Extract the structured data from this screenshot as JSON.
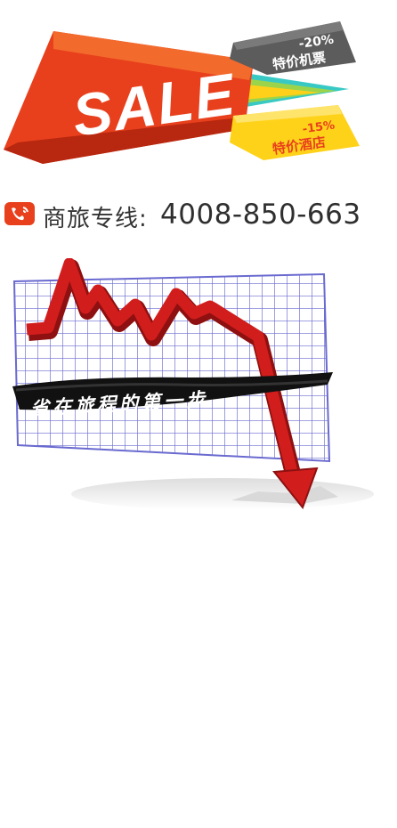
{
  "banner": {
    "sale_text": "SALE",
    "flight_tag": {
      "discount": "-20%",
      "label": "特价机票"
    },
    "hotel_tag": {
      "discount": "-15%",
      "label": "特价酒店"
    }
  },
  "hotline": {
    "icon": "phone-icon",
    "label": "商旅专线:",
    "number": "4008-850-663"
  },
  "illustration": {
    "icon": "falling-price-chart-icon",
    "slogan": "省在旅程的第一步"
  },
  "colors": {
    "sale_red": "#e8401c",
    "flight_tag_gray": "#5c5c5c",
    "hotel_tag_yellow": "#ffd21a",
    "arrow_red": "#d21d1d",
    "grid_blue": "#6a6ad0"
  }
}
